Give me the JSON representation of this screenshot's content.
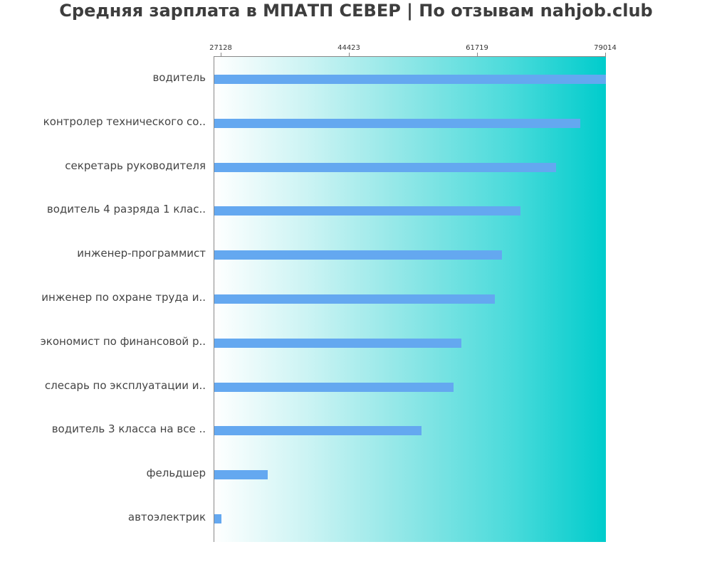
{
  "chart_data": {
    "type": "bar",
    "orientation": "horizontal",
    "title": "Средняя зарплата в МПАТП СЕВЕР | По отзывам nahjob.club",
    "xlabel": "",
    "ylabel": "",
    "xlim": [
      26167,
      79014
    ],
    "x_ticks": [
      "27128",
      "44423",
      "61719",
      "79014"
    ],
    "grid": false,
    "legend": null,
    "categories": [
      "водитель",
      "контролер технического со..",
      "секретарь руководителя",
      "водитель 4 разряда 1 клас..",
      "инженер-программист",
      "инженер по охране труда и..",
      "экономист по финансовой р..",
      "слесарь по эксплуатации и..",
      "водитель 3 класса на все ..",
      "фельдшер",
      "автоэлектрик"
    ],
    "values": [
      79014,
      75558,
      72290,
      67486,
      64987,
      64026,
      59510,
      58453,
      54129,
      33469,
      27224
    ],
    "colors": {
      "bar": "#64a8f0",
      "background_start": "#ffffff",
      "background_end": "#00cccc",
      "axis": "#888888",
      "title": "#3d3d3d"
    }
  }
}
